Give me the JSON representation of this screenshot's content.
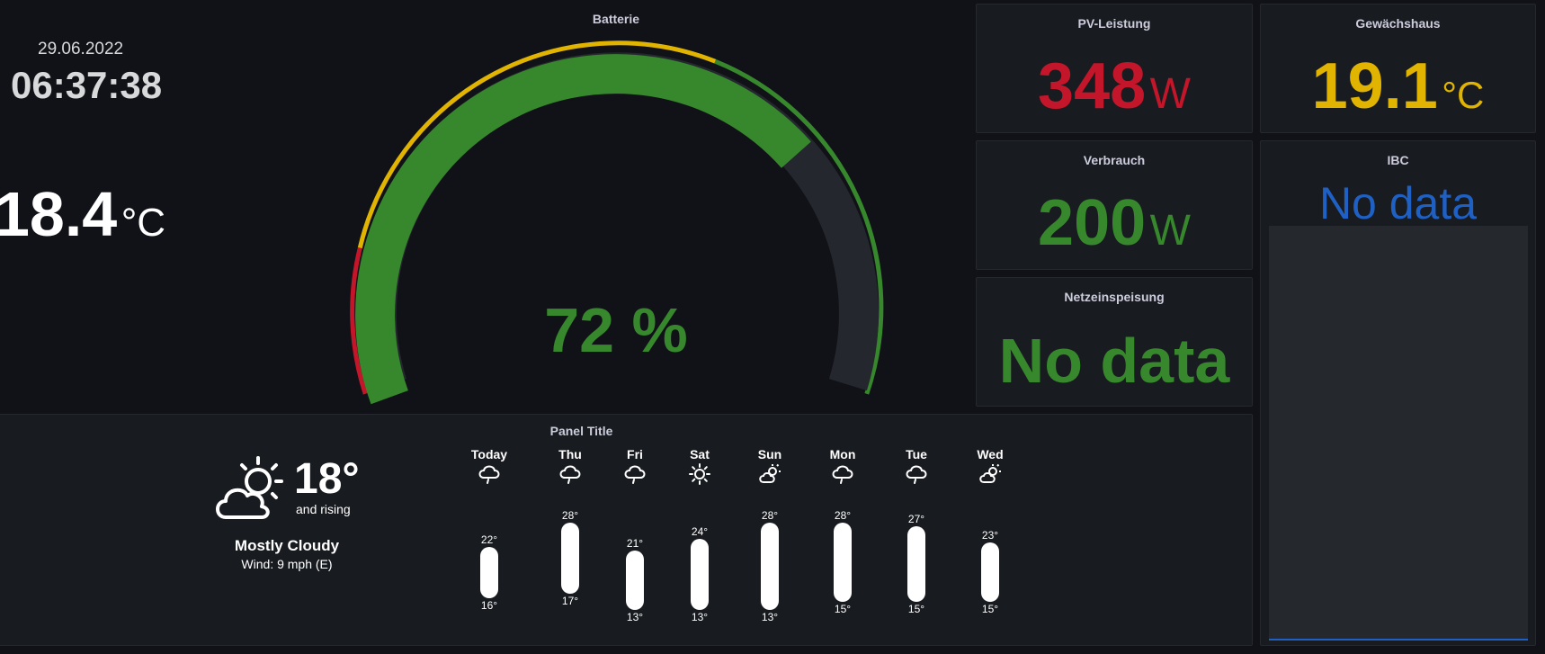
{
  "clock": {
    "date": "29.06.2022",
    "time": "06:37:38"
  },
  "outdoor": {
    "value": "18.4",
    "unit": "°C"
  },
  "battery": {
    "title": "Batterie",
    "value": "72 %",
    "percent": 72,
    "color": "#37872d"
  },
  "pv": {
    "title": "PV-Leistung",
    "value": "348",
    "unit": "W",
    "color": "#c4162a"
  },
  "greenhouse": {
    "title": "Gewächshaus",
    "value": "19.1",
    "unit": "°C",
    "color": "#e0b400"
  },
  "consumption": {
    "title": "Verbrauch",
    "value": "200",
    "unit": "W",
    "color": "#37872d"
  },
  "ibc": {
    "title": "IBC",
    "value": "No data",
    "color": "#1f60c4"
  },
  "feed_in": {
    "title": "Netzeinspeisung",
    "value": "No data",
    "color": "#37872d"
  },
  "weather": {
    "panel_title": "Panel Title",
    "current": {
      "temp": "18°",
      "trend": "and rising",
      "condition": "Mostly Cloudy",
      "wind": "Wind: 9 mph (E)",
      "icon": "partly-cloudy-sun-icon"
    },
    "forecast": [
      {
        "day": "Today",
        "icon": "cloud-drizzle-icon",
        "high": "22°",
        "low": "16°",
        "high_val": 22,
        "low_val": 16
      },
      {
        "day": "Thu",
        "icon": "cloud-drizzle-icon",
        "high": "28°",
        "low": "17°",
        "high_val": 28,
        "low_val": 17
      },
      {
        "day": "Fri",
        "icon": "cloud-drizzle-icon",
        "high": "21°",
        "low": "13°",
        "high_val": 21,
        "low_val": 13
      },
      {
        "day": "Sat",
        "icon": "sun-icon",
        "high": "24°",
        "low": "13°",
        "high_val": 24,
        "low_val": 13
      },
      {
        "day": "Sun",
        "icon": "partly-cloudy-sun-icon",
        "high": "28°",
        "low": "13°",
        "high_val": 28,
        "low_val": 13
      },
      {
        "day": "Mon",
        "icon": "cloud-drizzle-icon",
        "high": "28°",
        "low": "15°",
        "high_val": 28,
        "low_val": 15
      },
      {
        "day": "Tue",
        "icon": "cloud-drizzle-icon",
        "high": "27°",
        "low": "15°",
        "high_val": 27,
        "low_val": 15
      },
      {
        "day": "Wed",
        "icon": "partly-cloudy-sun-icon",
        "high": "23°",
        "low": "15°",
        "high_val": 23,
        "low_val": 15
      }
    ]
  }
}
